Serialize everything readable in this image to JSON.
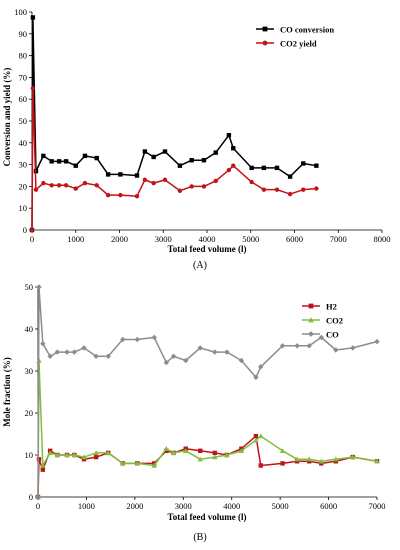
{
  "panels": [
    {
      "id": "A",
      "panel_label": "(A)",
      "xlabel": "Total feed volume (l)",
      "ylabel": "Conversion and yield (%)",
      "xlim": [
        0,
        8000
      ],
      "ylim": [
        0,
        100
      ],
      "xticks": [
        0,
        1000,
        2000,
        3000,
        4000,
        5000,
        6000,
        7000,
        8000
      ],
      "yticks": [
        0,
        10,
        20,
        30,
        40,
        50,
        60,
        70,
        80,
        90,
        100
      ],
      "legend": [
        {
          "label": "CO conversion",
          "color": "#000000",
          "marker": "square"
        },
        {
          "label": "CO2 yield",
          "color": "#c0141a",
          "marker": "circle"
        }
      ]
    },
    {
      "id": "B",
      "panel_label": "(B)",
      "xlabel": "Total feed volume (l)",
      "ylabel": "Mole fraction (%)",
      "xlim": [
        0,
        7000
      ],
      "ylim": [
        0,
        50
      ],
      "xticks": [
        0,
        1000,
        2000,
        3000,
        4000,
        5000,
        6000,
        7000
      ],
      "yticks": [
        0,
        10,
        20,
        30,
        40,
        50
      ],
      "legend": [
        {
          "label": "H2",
          "color": "#c0141a",
          "marker": "square"
        },
        {
          "label": "CO2",
          "color": "#7fbf3f",
          "marker": "triangle"
        },
        {
          "label": "CO",
          "color": "#8c8c8c",
          "marker": "diamond"
        }
      ]
    }
  ],
  "chart_data": [
    {
      "type": "line",
      "panel": "(A)",
      "xlabel": "Total feed volume (l)",
      "ylabel": "Conversion and yield (%)",
      "xlim": [
        0,
        8000
      ],
      "ylim": [
        0,
        100
      ],
      "grid": false,
      "legend_position": "top-right",
      "series": [
        {
          "name": "CO conversion",
          "color": "#000000",
          "marker": "square",
          "x": [
            0,
            20,
            90,
            260,
            450,
            620,
            780,
            1000,
            1210,
            1480,
            1740,
            2020,
            2400,
            2580,
            2780,
            3040,
            3380,
            3650,
            3930,
            4200,
            4500,
            4600,
            5020,
            5300,
            5600,
            5900,
            6200,
            6500
          ],
          "y": [
            0,
            97.5,
            27,
            34,
            31.5,
            31.5,
            31.5,
            29.5,
            34,
            33,
            25.5,
            25.5,
            25,
            36,
            33.5,
            36,
            29.5,
            32,
            32,
            35.5,
            43.5,
            37.5,
            28.5,
            28.5,
            28.5,
            24.5,
            30.5,
            29.5
          ]
        },
        {
          "name": "CO2 yield",
          "color": "#c0141a",
          "marker": "circle",
          "x": [
            0,
            20,
            90,
            260,
            450,
            620,
            780,
            1000,
            1210,
            1480,
            1740,
            2020,
            2400,
            2580,
            2780,
            3040,
            3380,
            3650,
            3930,
            4200,
            4500,
            4600,
            5020,
            5300,
            5600,
            5900,
            6200,
            6500
          ],
          "y": [
            0,
            65,
            18.5,
            21.5,
            20.5,
            20.5,
            20.5,
            19,
            21.5,
            20.5,
            16,
            16,
            15.5,
            23,
            21.5,
            23,
            18,
            20,
            20,
            22.5,
            27.5,
            29.5,
            22,
            18.5,
            18.5,
            16.5,
            18.5,
            19
          ]
        }
      ]
    },
    {
      "type": "line",
      "panel": "(B)",
      "xlabel": "Total feed volume (l)",
      "ylabel": "Mole fraction (%)",
      "xlim": [
        0,
        7000
      ],
      "ylim": [
        0,
        50
      ],
      "grid": false,
      "legend_position": "top-right",
      "series": [
        {
          "name": "H2",
          "color": "#c0141a",
          "marker": "square",
          "x": [
            0,
            20,
            100,
            250,
            400,
            600,
            750,
            950,
            1200,
            1450,
            1750,
            2050,
            2400,
            2650,
            2800,
            3050,
            3350,
            3650,
            3900,
            4200,
            4500,
            4600,
            5050,
            5350,
            5600,
            5850,
            6150,
            6500,
            7000
          ],
          "y": [
            0,
            9,
            6.5,
            11,
            10,
            10,
            10,
            9,
            9.5,
            10.5,
            8,
            8,
            8,
            11,
            10.5,
            11.5,
            11,
            10.5,
            10,
            11.5,
            14.5,
            7.5,
            8,
            8.5,
            8.5,
            8,
            8.5,
            9.5,
            8.5
          ]
        },
        {
          "name": "CO2",
          "color": "#7fbf3f",
          "marker": "triangle",
          "x": [
            0,
            20,
            100,
            250,
            400,
            600,
            750,
            950,
            1200,
            1450,
            1750,
            2050,
            2400,
            2650,
            2800,
            3050,
            3350,
            3650,
            3900,
            4200,
            4500,
            4600,
            5050,
            5350,
            5600,
            5850,
            6150,
            6500,
            7000
          ],
          "y": [
            0,
            32.5,
            7.5,
            10.5,
            10,
            10,
            10,
            9.5,
            10.5,
            10.5,
            8,
            8,
            7.5,
            11.5,
            10.5,
            11,
            9,
            9.5,
            10,
            11,
            13.5,
            14.5,
            11,
            9,
            9,
            8.5,
            9,
            9.5,
            8.5
          ]
        },
        {
          "name": "CO",
          "color": "#8c8c8c",
          "marker": "diamond",
          "x": [
            0,
            20,
            100,
            250,
            400,
            600,
            750,
            950,
            1200,
            1450,
            1750,
            2050,
            2400,
            2650,
            2800,
            3050,
            3350,
            3650,
            3900,
            4200,
            4500,
            4600,
            5050,
            5350,
            5600,
            5850,
            6150,
            6500,
            7000
          ],
          "y": [
            0,
            50,
            36.5,
            33.5,
            34.5,
            34.5,
            34.5,
            35.5,
            33.5,
            33.5,
            37.5,
            37.5,
            38,
            32,
            33.5,
            32.5,
            35.5,
            34.5,
            34.5,
            32.5,
            28.5,
            31,
            36,
            36,
            36,
            38,
            35,
            35.5,
            37
          ]
        }
      ]
    }
  ]
}
